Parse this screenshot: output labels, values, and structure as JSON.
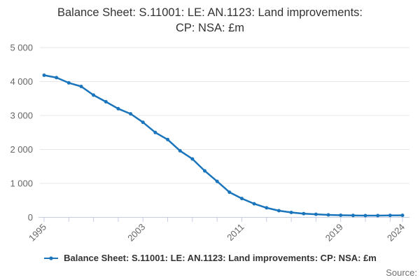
{
  "header": {
    "title_line1": "Balance Sheet: S.11001: LE: AN.1123: Land improvements:",
    "title_line2": "CP: NSA: £m"
  },
  "legend": {
    "label": "Balance Sheet: S.11001: LE: AN.1123: Land improvements: CP: NSA: £m"
  },
  "footer": {
    "source_label": "Source:"
  },
  "chart_data": {
    "type": "line",
    "title": "Balance Sheet: S.11001: LE: AN.1123: Land improvements: CP: NSA: £m",
    "x": [
      1995,
      1996,
      1997,
      1998,
      1999,
      2000,
      2001,
      2002,
      2003,
      2004,
      2005,
      2006,
      2007,
      2008,
      2009,
      2010,
      2011,
      2012,
      2013,
      2014,
      2015,
      2016,
      2017,
      2018,
      2019,
      2020,
      2021,
      2022,
      2023,
      2024
    ],
    "series": [
      {
        "name": "Balance Sheet: S.11001: LE: AN.1123: Land improvements: CP: NSA: £m",
        "values": [
          4185,
          4115,
          3960,
          3855,
          3600,
          3405,
          3200,
          3050,
          2800,
          2500,
          2290,
          1960,
          1720,
          1370,
          1060,
          740,
          555,
          400,
          280,
          195,
          145,
          110,
          90,
          72,
          62,
          55,
          52,
          52,
          57,
          60
        ]
      }
    ],
    "xlabel": "",
    "ylabel": "",
    "ylim": [
      0,
      5000
    ],
    "yticks": [
      0,
      1000,
      2000,
      3000,
      4000,
      5000
    ],
    "ytick_labels": [
      "0",
      "1 000",
      "2 000",
      "3 000",
      "4 000",
      "5 000"
    ],
    "xticks": [
      1995,
      1997,
      1999,
      2001,
      2003,
      2005,
      2007,
      2009,
      2011,
      2013,
      2015,
      2017,
      2019,
      2021,
      2023,
      2024
    ],
    "xtick_label_years": [
      "1995",
      "2003",
      "2011",
      "2019",
      "2024"
    ],
    "grid": "horizontal-only",
    "legend_position": "bottom",
    "marker": "circle",
    "colors": {
      "line": "#1b75bc",
      "grid": "#e7e7e7",
      "axis": "#c4cde1",
      "tick_text": "#666666",
      "title_text": "#333333",
      "source_text": "#707070"
    }
  }
}
